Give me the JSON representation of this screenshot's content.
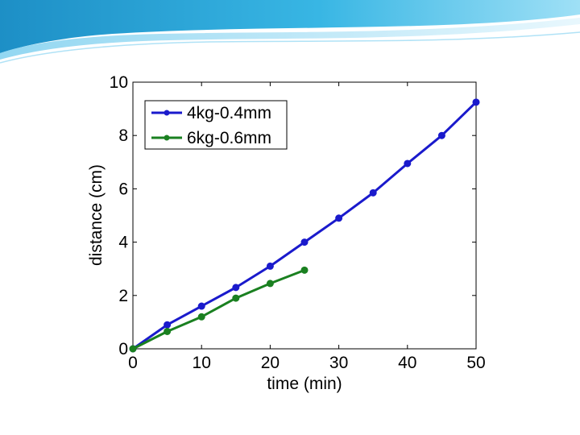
{
  "chart_data": {
    "type": "line",
    "xlabel": "time (min)",
    "ylabel": "distance (cm)",
    "xlim": [
      0,
      50
    ],
    "ylim": [
      0,
      10
    ],
    "xticks": [
      0,
      10,
      20,
      30,
      40,
      50
    ],
    "yticks": [
      0,
      2,
      4,
      6,
      8,
      10
    ],
    "grid": false,
    "legend_position": "top-left",
    "series": [
      {
        "name": "4kg-0.4mm",
        "color": "#1a1acc",
        "x": [
          0,
          5,
          10,
          15,
          20,
          25,
          30,
          35,
          40,
          45,
          50
        ],
        "y": [
          0,
          0.9,
          1.6,
          2.3,
          3.1,
          4.0,
          4.9,
          5.85,
          6.95,
          8.0,
          9.25
        ]
      },
      {
        "name": "6kg-0.6mm",
        "color": "#1a8020",
        "x": [
          0,
          5,
          10,
          15,
          20,
          25
        ],
        "y": [
          0,
          0.65,
          1.2,
          1.9,
          2.45,
          2.95
        ]
      }
    ]
  }
}
